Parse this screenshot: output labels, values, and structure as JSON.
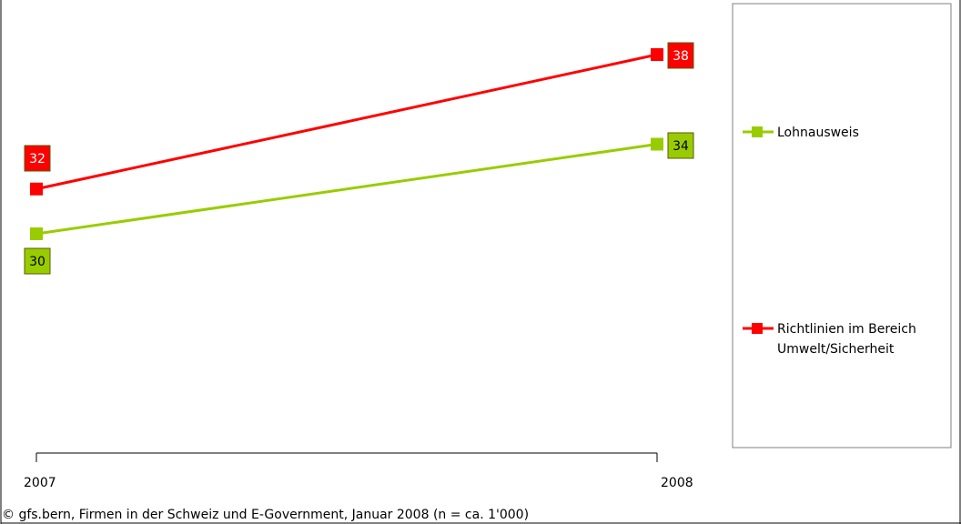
{
  "chart_data": {
    "type": "line",
    "x": [
      "2007",
      "2008"
    ],
    "series": [
      {
        "name": "Lohnausweis",
        "values": [
          30,
          34
        ],
        "color": "#99cc00",
        "label_color": "#99cc00",
        "label_text_color": "#000000"
      },
      {
        "name": "Richtlinien im Bereich Umwelt/Sicherheit",
        "values": [
          32,
          38
        ],
        "color": "#ff0000",
        "label_color": "#ff0000",
        "label_text_color": "#ffffff"
      }
    ],
    "ylim": [
      20,
      40
    ],
    "grid": false,
    "legend_position": "right",
    "source": "© gfs.bern, Firmen in der Schweiz und E-Government, Januar 2008 (n = ca. 1'000)"
  }
}
